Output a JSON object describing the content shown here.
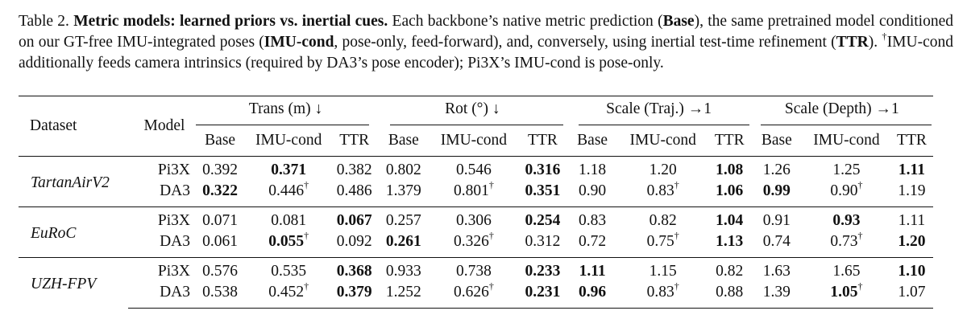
{
  "caption": {
    "label": "Table 2.",
    "title": "Metric models: learned priors vs. inertial cues.",
    "text_1": " Each backbone’s native metric prediction (",
    "base": "Base",
    "text_2": "), the same pretrained model conditioned on our GT-free IMU-integrated poses (",
    "imucond": "IMU-cond",
    "text_3": ", pose-only, feed-forward), and, conversely, using inertial test-time refinement (",
    "ttr": "TTR",
    "text_4": "). ",
    "dagger": "†",
    "text_5": "IMU-cond additionally feeds camera intrinsics (required by DA3’s pose encoder); Pi3X’s IMU-cond is pose-only."
  },
  "table": {
    "header": {
      "dataset": "Dataset",
      "model": "Model",
      "groups": [
        "Trans (m) ↓",
        "Rot (°) ↓",
        "Scale (Traj.) →1",
        "Scale (Depth) →1"
      ],
      "subcols": [
        "Base",
        "IMU-cond",
        "TTR"
      ]
    },
    "datasets": [
      {
        "name": "TartanAirV2",
        "rows": [
          {
            "model": "Pi3X",
            "cells": [
              {
                "v": "0.392"
              },
              {
                "v": "0.371",
                "b": true
              },
              {
                "v": "0.382"
              },
              {
                "v": "0.802"
              },
              {
                "v": "0.546"
              },
              {
                "v": "0.316",
                "b": true
              },
              {
                "v": "1.18"
              },
              {
                "v": "1.20"
              },
              {
                "v": "1.08",
                "b": true
              },
              {
                "v": "1.26"
              },
              {
                "v": "1.25"
              },
              {
                "v": "1.11",
                "b": true
              }
            ]
          },
          {
            "model": "DA3",
            "cells": [
              {
                "v": "0.322",
                "b": true
              },
              {
                "v": "0.446",
                "d": "†"
              },
              {
                "v": "0.486"
              },
              {
                "v": "1.379"
              },
              {
                "v": "0.801",
                "d": "†"
              },
              {
                "v": "0.351",
                "b": true
              },
              {
                "v": "0.90"
              },
              {
                "v": "0.83",
                "d": "†"
              },
              {
                "v": "1.06",
                "b": true
              },
              {
                "v": "0.99",
                "b": true
              },
              {
                "v": "0.90",
                "d": "†"
              },
              {
                "v": "1.19"
              }
            ]
          }
        ]
      },
      {
        "name": "EuRoC",
        "rows": [
          {
            "model": "Pi3X",
            "cells": [
              {
                "v": "0.071"
              },
              {
                "v": "0.081"
              },
              {
                "v": "0.067",
                "b": true
              },
              {
                "v": "0.257"
              },
              {
                "v": "0.306"
              },
              {
                "v": "0.254",
                "b": true
              },
              {
                "v": "0.83"
              },
              {
                "v": "0.82"
              },
              {
                "v": "1.04",
                "b": true
              },
              {
                "v": "0.91"
              },
              {
                "v": "0.93",
                "b": true
              },
              {
                "v": "1.11"
              }
            ]
          },
          {
            "model": "DA3",
            "cells": [
              {
                "v": "0.061"
              },
              {
                "v": "0.055",
                "b": true,
                "d": "†"
              },
              {
                "v": "0.092"
              },
              {
                "v": "0.261",
                "b": true
              },
              {
                "v": "0.326",
                "d": "†"
              },
              {
                "v": "0.312"
              },
              {
                "v": "0.72"
              },
              {
                "v": "0.75",
                "d": "†"
              },
              {
                "v": "1.13",
                "b": true
              },
              {
                "v": "0.74"
              },
              {
                "v": "0.73",
                "d": "†"
              },
              {
                "v": "1.20",
                "b": true
              }
            ]
          }
        ]
      },
      {
        "name": "UZH-FPV",
        "rows": [
          {
            "model": "Pi3X",
            "cells": [
              {
                "v": "0.576"
              },
              {
                "v": "0.535"
              },
              {
                "v": "0.368",
                "b": true
              },
              {
                "v": "0.933"
              },
              {
                "v": "0.738"
              },
              {
                "v": "0.233",
                "b": true
              },
              {
                "v": "1.11",
                "b": true
              },
              {
                "v": "1.15"
              },
              {
                "v": "0.82"
              },
              {
                "v": "1.63"
              },
              {
                "v": "1.65"
              },
              {
                "v": "1.10",
                "b": true
              }
            ]
          },
          {
            "model": "DA3",
            "cells": [
              {
                "v": "0.538"
              },
              {
                "v": "0.452",
                "d": "†"
              },
              {
                "v": "0.379",
                "b": true
              },
              {
                "v": "1.252"
              },
              {
                "v": "0.626",
                "d": "†"
              },
              {
                "v": "0.231",
                "b": true
              },
              {
                "v": "0.96",
                "b": true
              },
              {
                "v": "0.83",
                "d": "†"
              },
              {
                "v": "0.88"
              },
              {
                "v": "1.39"
              },
              {
                "v": "1.05",
                "b": true,
                "d": "†"
              },
              {
                "v": "1.07"
              }
            ]
          }
        ]
      }
    ]
  }
}
